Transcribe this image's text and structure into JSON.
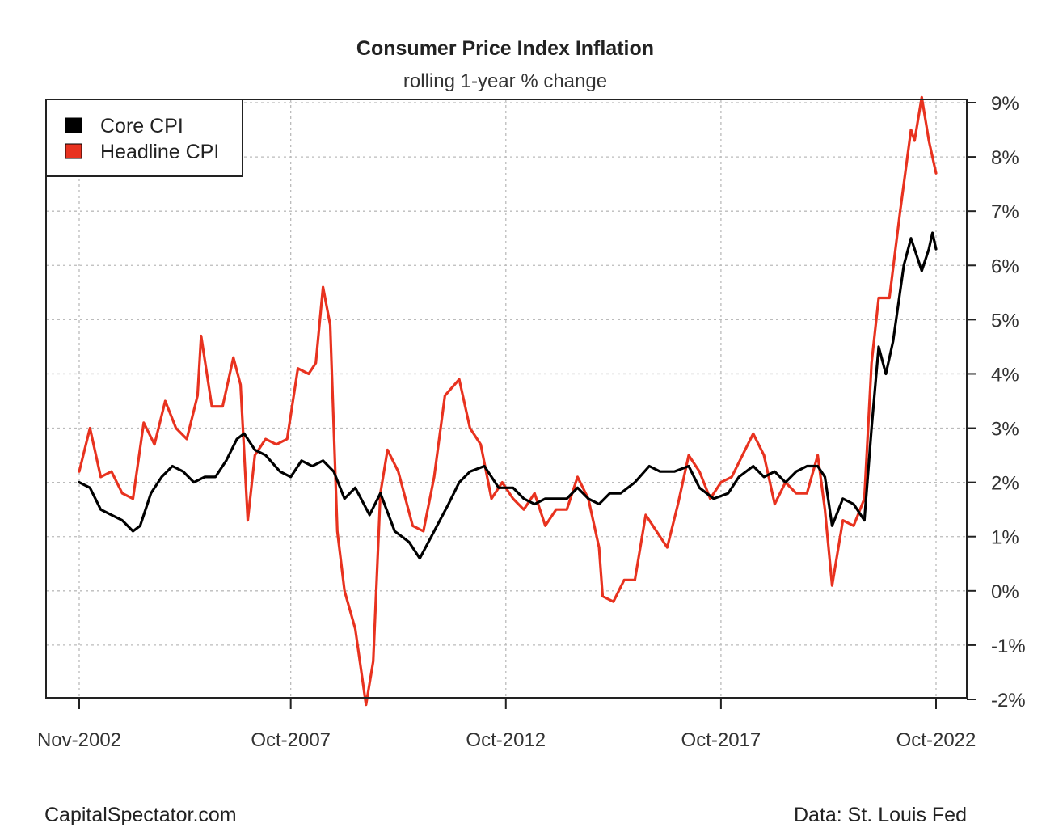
{
  "chart_data": {
    "type": "line",
    "title": "Consumer Price Index Inflation",
    "subtitle": "rolling 1-year % change",
    "x_tick_labels": [
      "Nov-2002",
      "Oct-2007",
      "Oct-2012",
      "Oct-2017",
      "Oct-2022"
    ],
    "x_tick_values": [
      "2002-11",
      "2007-10",
      "2012-10",
      "2017-10",
      "2022-10"
    ],
    "xlim": [
      "2002-11",
      "2022-10"
    ],
    "y_tick_labels": [
      "9%",
      "8%",
      "7%",
      "6%",
      "5%",
      "4%",
      "3%",
      "2%",
      "1%",
      "0%",
      "-1%",
      "-2%"
    ],
    "ylim": [
      -2,
      9
    ],
    "y_axis_side": "right",
    "grid": true,
    "legend_position": "top-left",
    "series": [
      {
        "name": "Core CPI",
        "color": "#000000",
        "points": [
          [
            "2002-11",
            2.0
          ],
          [
            "2003-02",
            1.9
          ],
          [
            "2003-05",
            1.5
          ],
          [
            "2003-08",
            1.4
          ],
          [
            "2003-11",
            1.3
          ],
          [
            "2004-02",
            1.1
          ],
          [
            "2004-04",
            1.2
          ],
          [
            "2004-07",
            1.8
          ],
          [
            "2004-10",
            2.1
          ],
          [
            "2005-01",
            2.3
          ],
          [
            "2005-04",
            2.2
          ],
          [
            "2005-07",
            2.0
          ],
          [
            "2005-10",
            2.1
          ],
          [
            "2006-01",
            2.1
          ],
          [
            "2006-04",
            2.4
          ],
          [
            "2006-07",
            2.8
          ],
          [
            "2006-09",
            2.9
          ],
          [
            "2006-12",
            2.6
          ],
          [
            "2007-03",
            2.5
          ],
          [
            "2007-07",
            2.2
          ],
          [
            "2007-10",
            2.1
          ],
          [
            "2008-01",
            2.4
          ],
          [
            "2008-04",
            2.3
          ],
          [
            "2008-07",
            2.4
          ],
          [
            "2008-10",
            2.2
          ],
          [
            "2009-01",
            1.7
          ],
          [
            "2009-04",
            1.9
          ],
          [
            "2009-08",
            1.4
          ],
          [
            "2009-11",
            1.8
          ],
          [
            "2010-03",
            1.1
          ],
          [
            "2010-07",
            0.9
          ],
          [
            "2010-10",
            0.6
          ],
          [
            "2011-02",
            1.1
          ],
          [
            "2011-06",
            1.6
          ],
          [
            "2011-09",
            2.0
          ],
          [
            "2011-12",
            2.2
          ],
          [
            "2012-04",
            2.3
          ],
          [
            "2012-08",
            1.9
          ],
          [
            "2012-12",
            1.9
          ],
          [
            "2013-03",
            1.7
          ],
          [
            "2013-06",
            1.6
          ],
          [
            "2013-09",
            1.7
          ],
          [
            "2013-12",
            1.7
          ],
          [
            "2014-03",
            1.7
          ],
          [
            "2014-06",
            1.9
          ],
          [
            "2014-09",
            1.7
          ],
          [
            "2014-12",
            1.6
          ],
          [
            "2015-03",
            1.8
          ],
          [
            "2015-06",
            1.8
          ],
          [
            "2015-10",
            2.0
          ],
          [
            "2016-02",
            2.3
          ],
          [
            "2016-05",
            2.2
          ],
          [
            "2016-09",
            2.2
          ],
          [
            "2017-01",
            2.3
          ],
          [
            "2017-04",
            1.9
          ],
          [
            "2017-08",
            1.7
          ],
          [
            "2017-12",
            1.8
          ],
          [
            "2018-03",
            2.1
          ],
          [
            "2018-07",
            2.3
          ],
          [
            "2018-10",
            2.1
          ],
          [
            "2019-01",
            2.2
          ],
          [
            "2019-04",
            2.0
          ],
          [
            "2019-07",
            2.2
          ],
          [
            "2019-10",
            2.3
          ],
          [
            "2020-01",
            2.3
          ],
          [
            "2020-03",
            2.1
          ],
          [
            "2020-05",
            1.2
          ],
          [
            "2020-08",
            1.7
          ],
          [
            "2020-11",
            1.6
          ],
          [
            "2021-02",
            1.3
          ],
          [
            "2021-04",
            3.0
          ],
          [
            "2021-06",
            4.5
          ],
          [
            "2021-08",
            4.0
          ],
          [
            "2021-10",
            4.6
          ],
          [
            "2022-01",
            6.0
          ],
          [
            "2022-03",
            6.5
          ],
          [
            "2022-06",
            5.9
          ],
          [
            "2022-08",
            6.3
          ],
          [
            "2022-09",
            6.6
          ],
          [
            "2022-10",
            6.3
          ]
        ]
      },
      {
        "name": "Headline CPI",
        "color": "#e8321f",
        "points": [
          [
            "2002-11",
            2.2
          ],
          [
            "2003-02",
            3.0
          ],
          [
            "2003-05",
            2.1
          ],
          [
            "2003-08",
            2.2
          ],
          [
            "2003-11",
            1.8
          ],
          [
            "2004-02",
            1.7
          ],
          [
            "2004-05",
            3.1
          ],
          [
            "2004-08",
            2.7
          ],
          [
            "2004-11",
            3.5
          ],
          [
            "2005-02",
            3.0
          ],
          [
            "2005-05",
            2.8
          ],
          [
            "2005-08",
            3.6
          ],
          [
            "2005-09",
            4.7
          ],
          [
            "2005-12",
            3.4
          ],
          [
            "2006-03",
            3.4
          ],
          [
            "2006-06",
            4.3
          ],
          [
            "2006-08",
            3.8
          ],
          [
            "2006-10",
            1.3
          ],
          [
            "2006-12",
            2.5
          ],
          [
            "2007-03",
            2.8
          ],
          [
            "2007-06",
            2.7
          ],
          [
            "2007-09",
            2.8
          ],
          [
            "2007-12",
            4.1
          ],
          [
            "2008-03",
            4.0
          ],
          [
            "2008-05",
            4.2
          ],
          [
            "2008-07",
            5.6
          ],
          [
            "2008-09",
            4.9
          ],
          [
            "2008-11",
            1.1
          ],
          [
            "2009-01",
            0.0
          ],
          [
            "2009-04",
            -0.7
          ],
          [
            "2009-07",
            -2.1
          ],
          [
            "2009-09",
            -1.3
          ],
          [
            "2009-11",
            1.8
          ],
          [
            "2010-01",
            2.6
          ],
          [
            "2010-04",
            2.2
          ],
          [
            "2010-08",
            1.2
          ],
          [
            "2010-11",
            1.1
          ],
          [
            "2011-02",
            2.1
          ],
          [
            "2011-05",
            3.6
          ],
          [
            "2011-09",
            3.9
          ],
          [
            "2011-12",
            3.0
          ],
          [
            "2012-03",
            2.7
          ],
          [
            "2012-06",
            1.7
          ],
          [
            "2012-09",
            2.0
          ],
          [
            "2012-12",
            1.7
          ],
          [
            "2013-03",
            1.5
          ],
          [
            "2013-06",
            1.8
          ],
          [
            "2013-09",
            1.2
          ],
          [
            "2013-12",
            1.5
          ],
          [
            "2014-03",
            1.5
          ],
          [
            "2014-06",
            2.1
          ],
          [
            "2014-09",
            1.7
          ],
          [
            "2014-12",
            0.8
          ],
          [
            "2015-01",
            -0.1
          ],
          [
            "2015-04",
            -0.2
          ],
          [
            "2015-07",
            0.2
          ],
          [
            "2015-10",
            0.2
          ],
          [
            "2016-01",
            1.4
          ],
          [
            "2016-04",
            1.1
          ],
          [
            "2016-07",
            0.8
          ],
          [
            "2016-10",
            1.6
          ],
          [
            "2017-01",
            2.5
          ],
          [
            "2017-04",
            2.2
          ],
          [
            "2017-07",
            1.7
          ],
          [
            "2017-10",
            2.0
          ],
          [
            "2018-01",
            2.1
          ],
          [
            "2018-04",
            2.5
          ],
          [
            "2018-07",
            2.9
          ],
          [
            "2018-10",
            2.5
          ],
          [
            "2019-01",
            1.6
          ],
          [
            "2019-04",
            2.0
          ],
          [
            "2019-07",
            1.8
          ],
          [
            "2019-10",
            1.8
          ],
          [
            "2020-01",
            2.5
          ],
          [
            "2020-03",
            1.5
          ],
          [
            "2020-05",
            0.1
          ],
          [
            "2020-08",
            1.3
          ],
          [
            "2020-11",
            1.2
          ],
          [
            "2021-02",
            1.7
          ],
          [
            "2021-04",
            4.2
          ],
          [
            "2021-06",
            5.4
          ],
          [
            "2021-09",
            5.4
          ],
          [
            "2021-12",
            7.0
          ],
          [
            "2022-03",
            8.5
          ],
          [
            "2022-04",
            8.3
          ],
          [
            "2022-06",
            9.1
          ],
          [
            "2022-08",
            8.3
          ],
          [
            "2022-10",
            7.7
          ]
        ]
      }
    ]
  },
  "footer": {
    "left": "CapitalSpectator.com",
    "right": "Data: St. Louis Fed"
  }
}
